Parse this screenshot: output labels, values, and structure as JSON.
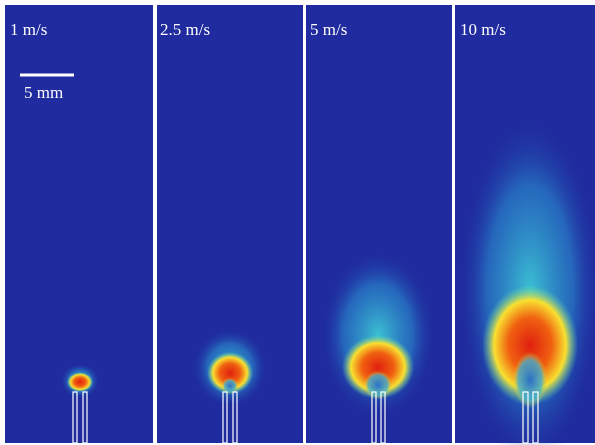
{
  "panels": [
    {
      "label": "1 m/s"
    },
    {
      "label": "2.5 m/s"
    },
    {
      "label": "5 m/s"
    },
    {
      "label": "10 m/s"
    }
  ],
  "scale_bar": {
    "label": "5 mm"
  }
}
